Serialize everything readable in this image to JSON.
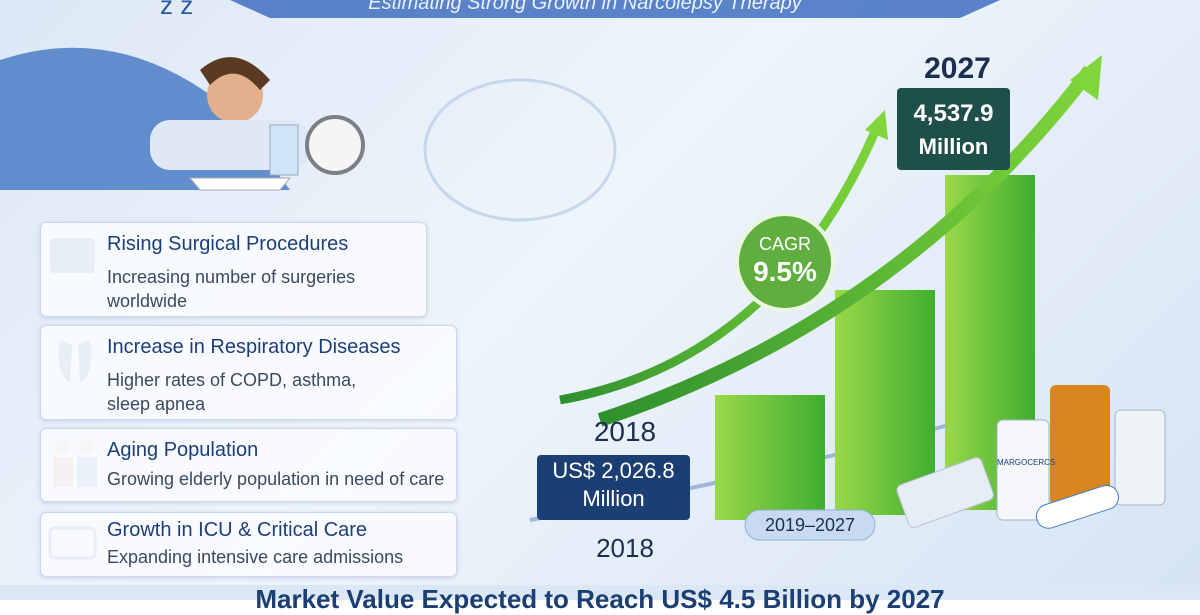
{
  "header": {
    "subtitle": "Estimating Strong Growth in Narcolepsy Therapy"
  },
  "drivers": [
    {
      "title": "Rising Surgical Procedures",
      "description": "Increasing number of surgeries worldwide"
    },
    {
      "title": "Increase in Respiratory Diseases",
      "description": "Higher rates of COPD, asthma, sleep apnea"
    },
    {
      "title": "Aging Population",
      "description": "Growing elderly population in need of care"
    },
    {
      "title": "Growth in ICU & Critical Care",
      "description": "Expanding intensive care admissions"
    }
  ],
  "chart": {
    "end_year": "2027",
    "end_value": "4,537.9",
    "end_unit": "Million",
    "cagr_label": "CAGR",
    "cagr_value": "9.5%",
    "start_year": "2018",
    "start_value": "US$ 2,026.8",
    "start_unit": "Million",
    "period": "2019–2027",
    "axis_label": "2018"
  },
  "bottle_label": "MARGOCERCS",
  "footer": {
    "headline": "Market Value Expected to Reach US$ 4.5 Billion by 2027"
  }
}
